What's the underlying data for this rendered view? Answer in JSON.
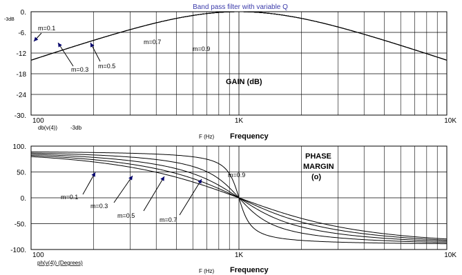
{
  "chart_data": [
    {
      "type": "line",
      "title": "Band pass filter with variable Q",
      "xlabel": "Frequency",
      "xunit": "F (Hz)",
      "x_scale": "log",
      "xlim": [
        100,
        10000
      ],
      "x_ticks": [
        "100",
        "1K",
        "10K"
      ],
      "ylim": [
        -30,
        0
      ],
      "y_ticks": [
        "0.",
        "-6.",
        "-12",
        "-18",
        "-24",
        "-30."
      ],
      "y_extra_tick": "-3dB",
      "trace_label": "db(v(4))",
      "trace_label_extra": "-3db",
      "annotation": "GAIN (dB)",
      "grid": true,
      "center_frequency": 1000,
      "series": [
        {
          "name": "m=0.1",
          "m": 0.1
        },
        {
          "name": "m=0.3",
          "m": 0.3
        },
        {
          "name": "m=0.5",
          "m": 0.5
        },
        {
          "name": "m=0.7",
          "m": 0.7
        },
        {
          "name": "m=0.9",
          "m": 0.9
        }
      ]
    },
    {
      "type": "line",
      "xlabel": "Frequency",
      "xunit": "F (Hz)",
      "x_scale": "log",
      "xlim": [
        100,
        10000
      ],
      "x_ticks": [
        "100",
        "1K",
        "10K"
      ],
      "ylim": [
        -100,
        100
      ],
      "y_ticks": [
        "100.",
        "50.",
        "0.",
        "-50.",
        "-100."
      ],
      "trace_label": "ph(v(4)) (Degrees)",
      "annotation": [
        "PHASE",
        "MARGIN",
        "(o)"
      ],
      "grid": true,
      "center_frequency": 1000,
      "series": [
        {
          "name": "m=0.1",
          "m": 0.1
        },
        {
          "name": "m=0.3",
          "m": 0.3
        },
        {
          "name": "m=0.5",
          "m": 0.5
        },
        {
          "name": "m=0.7",
          "m": 0.7
        },
        {
          "name": "m=0.9",
          "m": 0.9
        }
      ]
    }
  ]
}
